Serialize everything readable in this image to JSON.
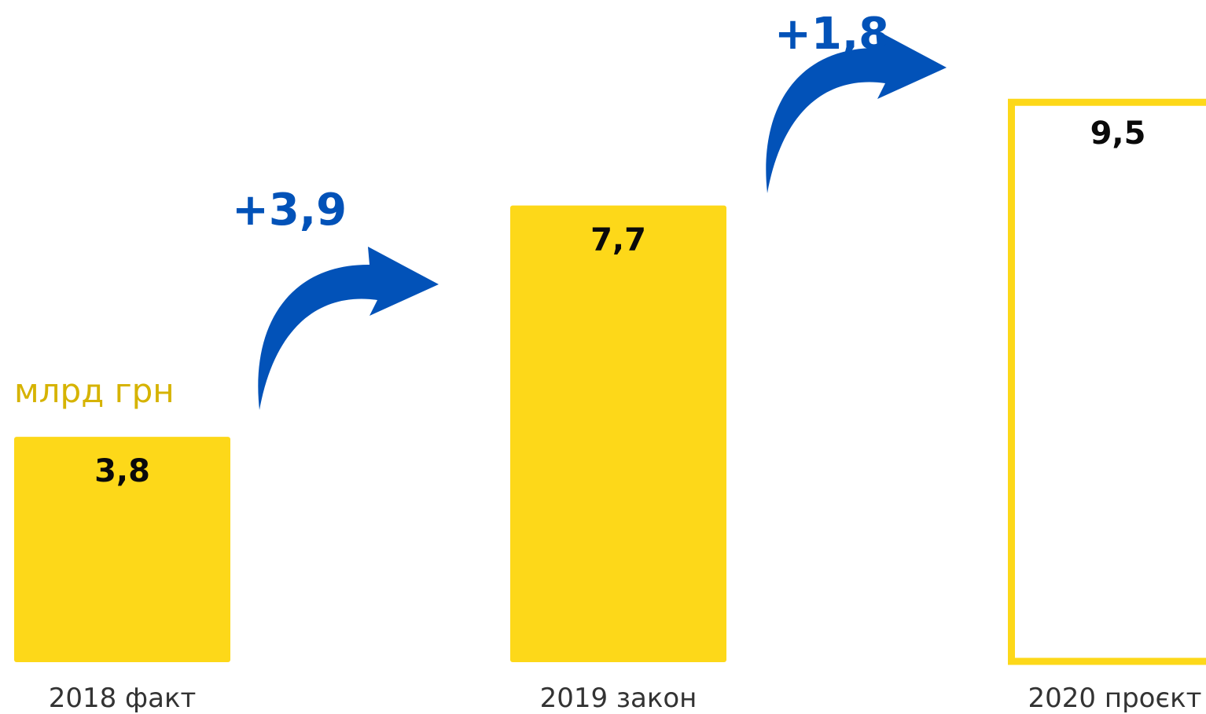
{
  "chart_data": {
    "type": "bar",
    "unit": "млрд грн",
    "categories": [
      "2018 факт",
      "2019 закон",
      "2020 проєкт"
    ],
    "values": [
      3.8,
      7.7,
      9.5
    ],
    "value_labels": [
      "3,8",
      "7,7",
      "9,5"
    ],
    "bar_styles": [
      "filled",
      "filled",
      "outline"
    ],
    "changes": [
      "+3,9",
      "+1,8"
    ],
    "grid": false,
    "legend": "none"
  },
  "colors": {
    "bar": "#FDD819",
    "arrow": "#0252B8",
    "unit_text": "#D6B300",
    "value_text": "#0a0a0a",
    "category_text": "#333333"
  },
  "icons": {
    "increase_arrow": "curved-arrow-right-icon"
  }
}
